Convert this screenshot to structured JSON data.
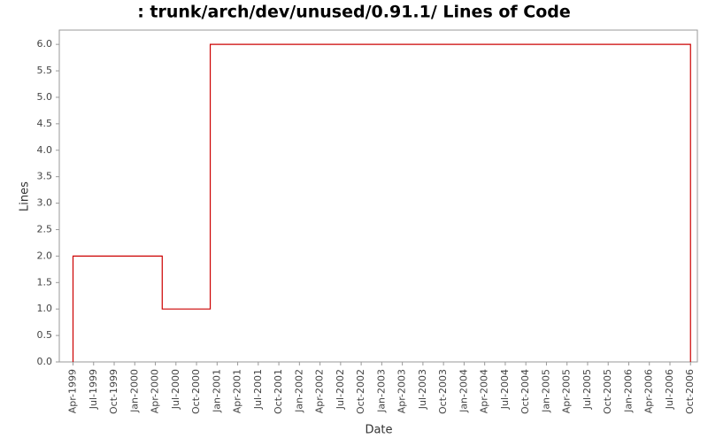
{
  "chart_data": {
    "type": "step-line",
    "title": ": trunk/arch/dev/unused/0.91.1/ Lines of Code",
    "x_label": "Date",
    "y_label": "Lines",
    "x": [
      "1999-04",
      "1999-04",
      "2000-05",
      "2000-12",
      "2006-10"
    ],
    "series": [
      {
        "name": "Lines",
        "color": "#cc0000",
        "values": [
          0,
          2,
          1,
          6,
          0
        ]
      }
    ],
    "xlim": [
      "1999-02",
      "2006-11"
    ],
    "xticks": [
      {
        "value": "1999-04",
        "label": "Apr-1999"
      },
      {
        "value": "1999-07",
        "label": "Jul-1999"
      },
      {
        "value": "1999-10",
        "label": "Oct-1999"
      },
      {
        "value": "2000-01",
        "label": "Jan-2000"
      },
      {
        "value": "2000-04",
        "label": "Apr-2000"
      },
      {
        "value": "2000-07",
        "label": "Jul-2000"
      },
      {
        "value": "2000-10",
        "label": "Oct-2000"
      },
      {
        "value": "2001-01",
        "label": "Jan-2001"
      },
      {
        "value": "2001-04",
        "label": "Apr-2001"
      },
      {
        "value": "2001-07",
        "label": "Jul-2001"
      },
      {
        "value": "2001-10",
        "label": "Oct-2001"
      },
      {
        "value": "2002-01",
        "label": "Jan-2002"
      },
      {
        "value": "2002-04",
        "label": "Apr-2002"
      },
      {
        "value": "2002-07",
        "label": "Jul-2002"
      },
      {
        "value": "2002-10",
        "label": "Oct-2002"
      },
      {
        "value": "2003-01",
        "label": "Jan-2003"
      },
      {
        "value": "2003-04",
        "label": "Apr-2003"
      },
      {
        "value": "2003-07",
        "label": "Jul-2003"
      },
      {
        "value": "2003-10",
        "label": "Oct-2003"
      },
      {
        "value": "2004-01",
        "label": "Jan-2004"
      },
      {
        "value": "2004-04",
        "label": "Apr-2004"
      },
      {
        "value": "2004-07",
        "label": "Jul-2004"
      },
      {
        "value": "2004-10",
        "label": "Oct-2004"
      },
      {
        "value": "2005-01",
        "label": "Jan-2005"
      },
      {
        "value": "2005-04",
        "label": "Apr-2005"
      },
      {
        "value": "2005-07",
        "label": "Jul-2005"
      },
      {
        "value": "2005-10",
        "label": "Oct-2005"
      },
      {
        "value": "2006-01",
        "label": "Jan-2006"
      },
      {
        "value": "2006-04",
        "label": "Apr-2006"
      },
      {
        "value": "2006-07",
        "label": "Jul-2006"
      },
      {
        "value": "2006-10",
        "label": "Oct-2006"
      }
    ],
    "ylim": [
      0,
      6.27
    ],
    "yticks": [
      {
        "value": 0,
        "label": "0.0"
      },
      {
        "value": 0.5,
        "label": "0.5"
      },
      {
        "value": 1,
        "label": "1.0"
      },
      {
        "value": 1.5,
        "label": "1.5"
      },
      {
        "value": 2,
        "label": "2.0"
      },
      {
        "value": 2.5,
        "label": "2.5"
      },
      {
        "value": 3,
        "label": "3.0"
      },
      {
        "value": 3.5,
        "label": "3.5"
      },
      {
        "value": 4,
        "label": "4.0"
      },
      {
        "value": 4.5,
        "label": "4.5"
      },
      {
        "value": 5,
        "label": "5.0"
      },
      {
        "value": 5.5,
        "label": "5.5"
      },
      {
        "value": 6,
        "label": "6.0"
      }
    ],
    "grid": false
  }
}
